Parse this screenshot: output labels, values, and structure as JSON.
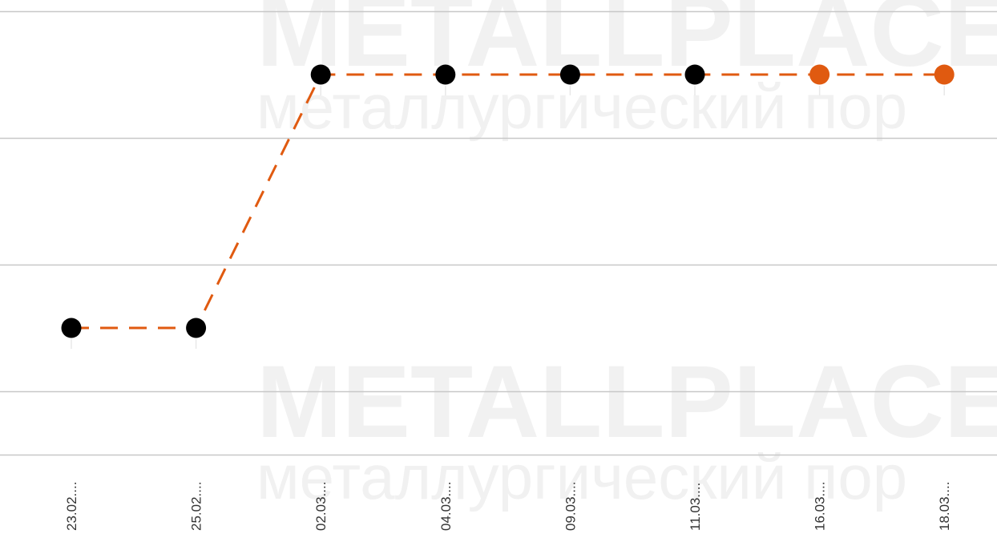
{
  "watermark": {
    "brand": "METALLPLACE.R",
    "tagline": "металлургический пор"
  },
  "colors": {
    "line": "#e05a10",
    "marker_actual": "#000000",
    "marker_forecast": "#e05a10",
    "grid": "#c8c8c8",
    "watermark": "#f1f1f1"
  },
  "chart_data": {
    "type": "line",
    "categories": [
      "23.02....",
      "25.02....",
      "02.03....",
      "04.03....",
      "09.03....",
      "11.03....",
      "16.03....",
      "18.03...."
    ],
    "values": [
      1,
      1,
      3,
      3,
      3,
      3,
      3,
      3
    ],
    "forecast_from_index": 6,
    "line_style": "dashed",
    "ylim": [
      0,
      3.5
    ],
    "y_gridlines": [
      0.5,
      1.5,
      2.5,
      3.5
    ],
    "grid": true,
    "legend": "none",
    "title": "",
    "xlabel": "",
    "ylabel": ""
  }
}
